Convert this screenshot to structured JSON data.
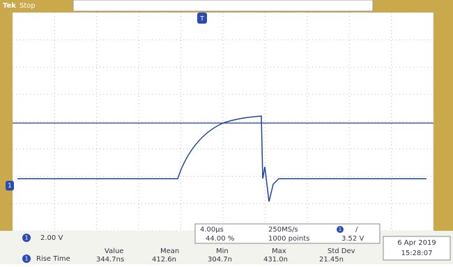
{
  "header": {
    "brand": "Tek",
    "status": "Stop"
  },
  "markers": {
    "trigger_position": "T",
    "channel_ground": "1"
  },
  "channel": {
    "number": "1",
    "scale": "2.00 V"
  },
  "acquisition": {
    "time_per_div": "4.00µs",
    "sample_rate": "250MS/s",
    "trigger_channel": "1",
    "trigger_slope": "/",
    "trigger_level": "3.52 V",
    "position": "44.00 %",
    "record_length": "1000 points"
  },
  "date": {
    "day": "6 Apr 2019",
    "time": "15:28:07"
  },
  "measurement": {
    "channel": "1",
    "name": "Rise Time",
    "columns": [
      {
        "header": "Value",
        "value": "344.7ns"
      },
      {
        "header": "Mean",
        "value": "412.6n"
      },
      {
        "header": "Min",
        "value": "304.7n"
      },
      {
        "header": "Max",
        "value": "431.0n"
      },
      {
        "header": "Std Dev",
        "value": "21.45n"
      }
    ]
  }
}
